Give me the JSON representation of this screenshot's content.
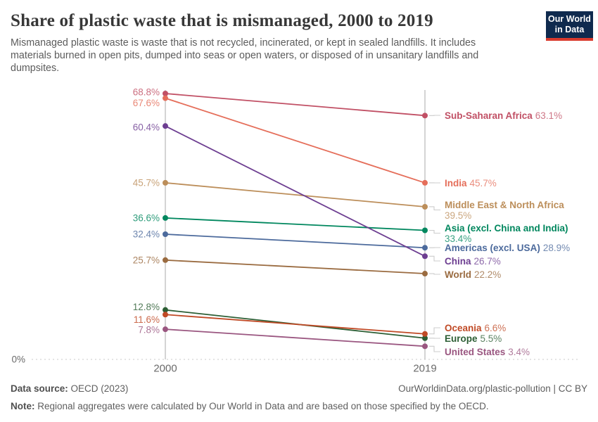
{
  "header": {
    "title": "Share of plastic waste that is mismanaged, 2000 to 2019",
    "subtitle_lines": [
      "Mismanaged plastic waste is waste that is not recycled, incinerated, or kept in sealed landfills. It includes",
      "materials burned in open pits, dumped into seas or open waters, or disposed of in unsanitary landfills and",
      "dumpsites."
    ],
    "logo": {
      "line1": "Our World",
      "line2": "in Data"
    }
  },
  "chart_data": {
    "type": "line",
    "subtype": "slope",
    "x": [
      "2000",
      "2019"
    ],
    "series": [
      {
        "name": "Sub-Saharan Africa",
        "values": [
          68.8,
          63.1
        ],
        "color": "#c15065"
      },
      {
        "name": "India",
        "values": [
          67.6,
          45.7
        ],
        "color": "#e56e5a"
      },
      {
        "name": "China",
        "values": [
          60.4,
          26.7
        ],
        "color": "#6d3e91"
      },
      {
        "name": "Middle East & North Africa",
        "values": [
          45.7,
          39.5
        ],
        "color": "#bc8e5a"
      },
      {
        "name": "Asia (excl. China and India)",
        "values": [
          36.6,
          33.4
        ],
        "color": "#00875e"
      },
      {
        "name": "Americas (excl. USA)",
        "values": [
          32.4,
          28.9
        ],
        "color": "#4c6a9c"
      },
      {
        "name": "World",
        "values": [
          25.7,
          22.2
        ],
        "color": "#9a6b40"
      },
      {
        "name": "Europe",
        "values": [
          12.8,
          5.5
        ],
        "color": "#2c5e34"
      },
      {
        "name": "Oceania",
        "values": [
          11.6,
          6.6
        ],
        "color": "#c04a26"
      },
      {
        "name": "United States",
        "values": [
          7.8,
          3.4
        ],
        "color": "#9a5680"
      }
    ],
    "ylim": [
      0,
      70
    ],
    "y_zero_label": "0%",
    "grid": "dashed zero baseline only",
    "legend": "direct labels right of 2019 axis"
  },
  "footer": {
    "source_label": "Data source:",
    "source_value": "OECD (2023)",
    "credit": "OurWorldinData.org/plastic-pollution | CC BY",
    "note_label": "Note:",
    "note_value": "Regional aggregates were calculated by Our World in Data and are based on those specified by the OECD."
  }
}
